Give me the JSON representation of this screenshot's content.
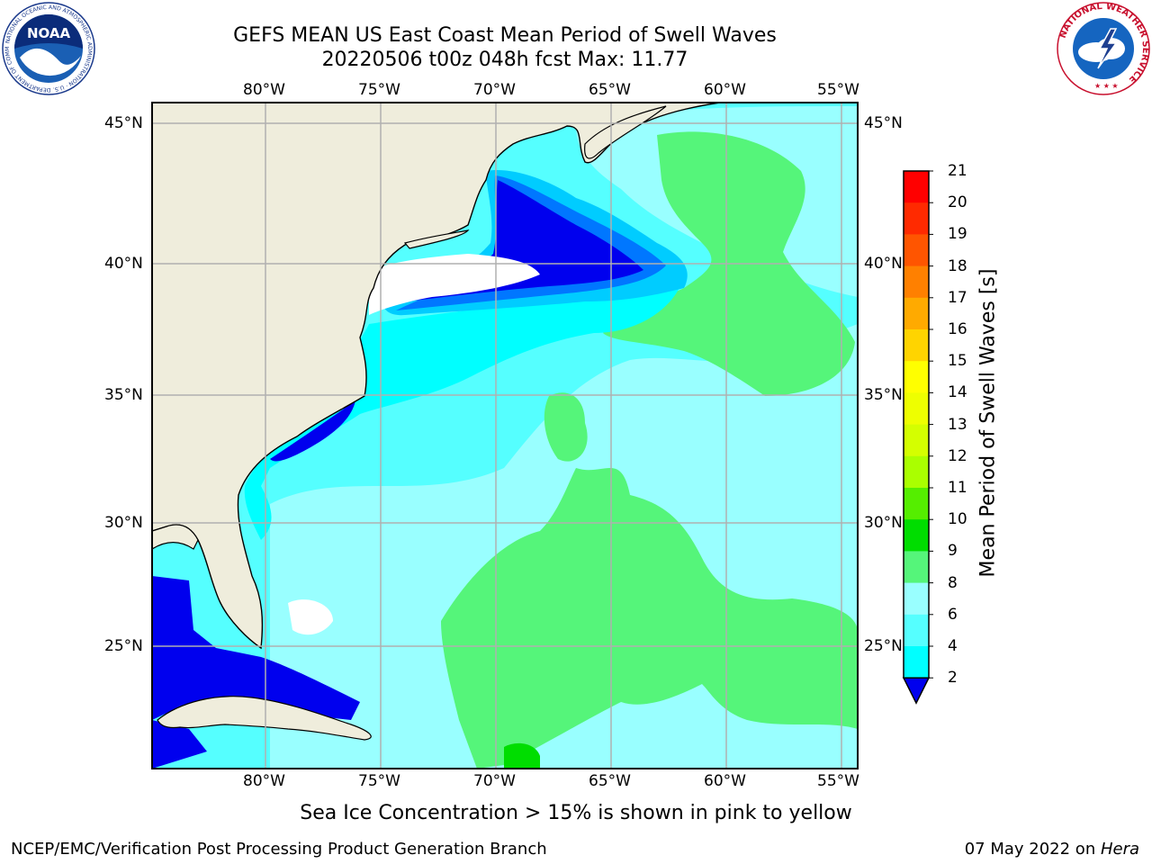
{
  "title": {
    "line1": "GEFS MEAN US East Coast Mean Period of Swell Waves",
    "line2": "20220506 t00z 048h fcst   Max: 11.77"
  },
  "map": {
    "lon_labels": [
      "80°W",
      "75°W",
      "70°W",
      "65°W",
      "60°W",
      "55°W"
    ],
    "lat_labels": [
      "45°N",
      "40°N",
      "35°N",
      "30°N",
      "25°N"
    ],
    "land_color": "#efeddc",
    "grid_color": "#b0b0b0",
    "no_data_color": "#ffffff"
  },
  "colorbar": {
    "label": "Mean Period of Swell Waves [s]",
    "ticks": [
      "21",
      "20",
      "19",
      "18",
      "17",
      "16",
      "15",
      "14",
      "13",
      "12",
      "11",
      "10",
      "9",
      "8",
      "6",
      "4",
      "2"
    ],
    "colors": [
      "#ff0000",
      "#ff2a00",
      "#ff5500",
      "#ff8000",
      "#ffaa00",
      "#ffd400",
      "#ffff00",
      "#eeff00",
      "#d4ff00",
      "#aaff00",
      "#55ee00",
      "#00dd00",
      "#55f57a",
      "#99ffff",
      "#55ffff",
      "#00ffff",
      "#00ccff",
      "#0077ff",
      "#0000ee"
    ],
    "extend": "min"
  },
  "caption": "Sea Ice Concentration > 15% is shown in pink to yellow",
  "footer": {
    "left": "NCEP/EMC/Verification Post Processing Product Generation Branch",
    "right_prefix": "07 May 2022 on ",
    "right_host": "Hera"
  },
  "logos": {
    "left": "noaa-logo",
    "right": "national-weather-service-logo",
    "noaa_text": "NOAA",
    "noaa_ring": "NATIONAL OCEANIC AND ATMOSPHERIC ADMINISTRATION · U.S. DEPARTMENT OF COMMERCE",
    "nws_ring": "NATIONAL WEATHER SERVICE"
  }
}
